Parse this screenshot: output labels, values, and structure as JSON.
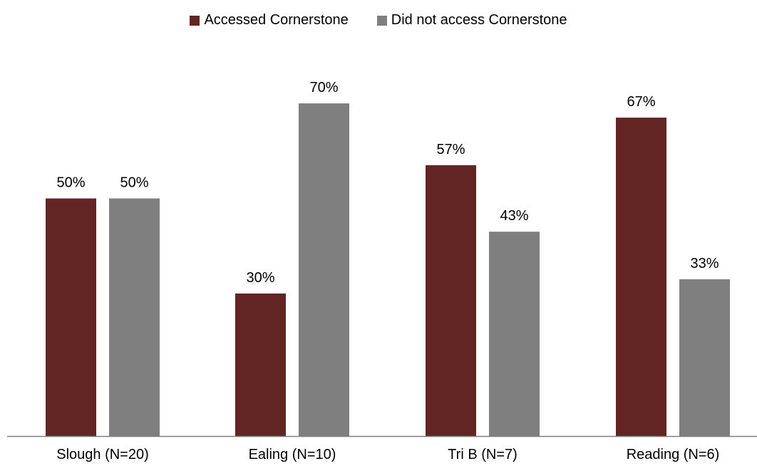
{
  "chart_data": {
    "type": "bar",
    "categories": [
      "Slough (N=20)",
      "Ealing (N=10)",
      "Tri B (N=7)",
      "Reading (N=6)"
    ],
    "series": [
      {
        "name": "Accessed Cornerstone",
        "values": [
          50,
          30,
          57,
          67
        ],
        "labels": [
          "50%",
          "30%",
          "57%",
          "67%"
        ],
        "color": "#632523"
      },
      {
        "name": "Did not access Cornerstone",
        "values": [
          50,
          70,
          43,
          33
        ],
        "labels": [
          "50%",
          "70%",
          "43%",
          "33%"
        ],
        "color": "#7f7f7f"
      }
    ],
    "ylim": [
      0,
      100
    ],
    "grid": false,
    "legend_position": "top-center"
  }
}
